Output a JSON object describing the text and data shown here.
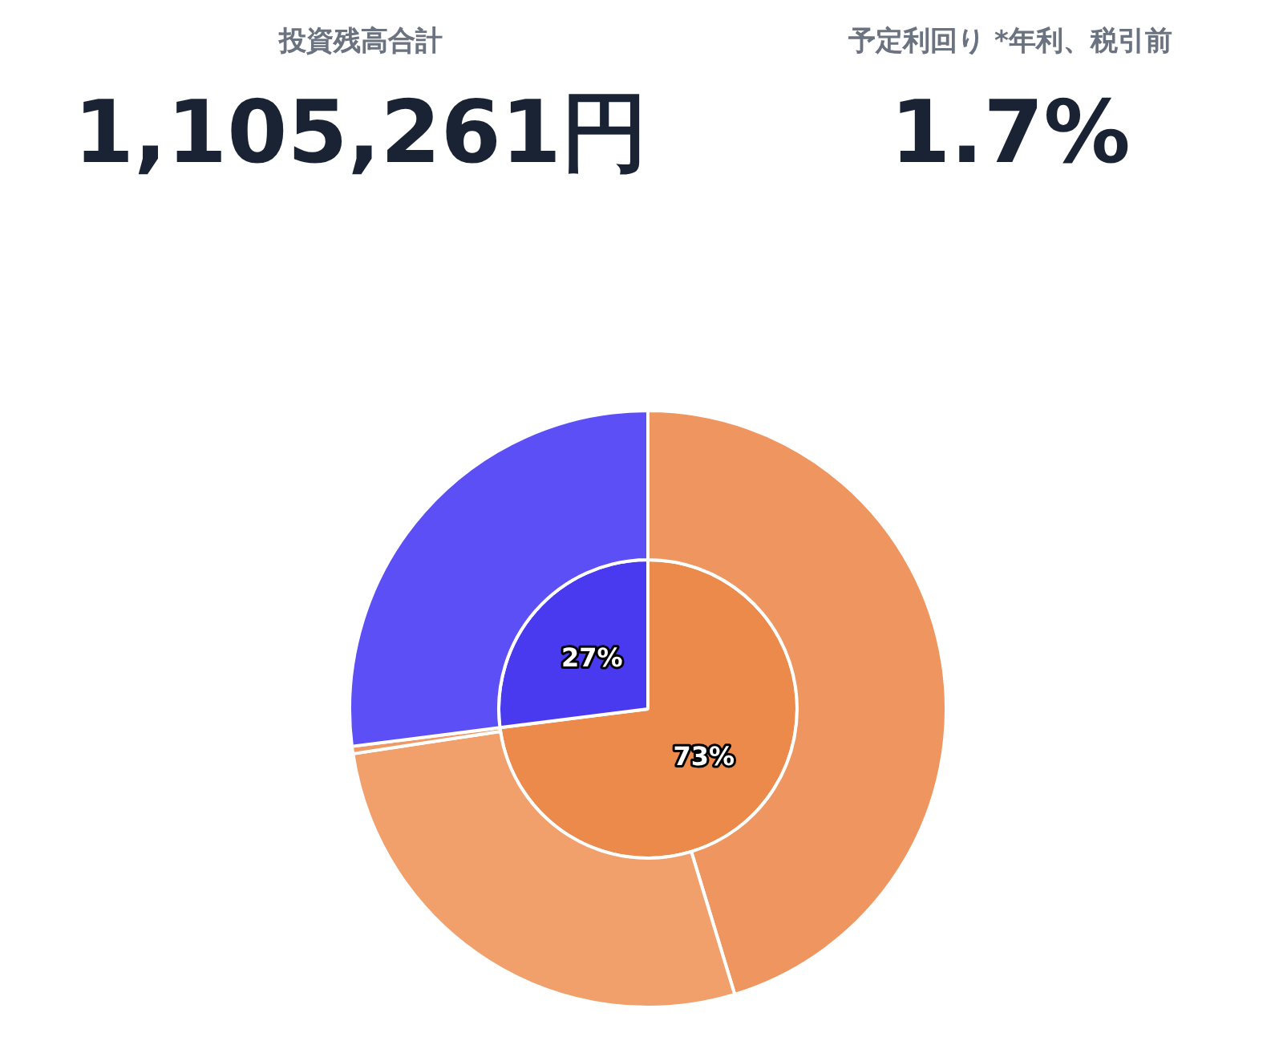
{
  "chart_data": [
    {
      "type": "other",
      "annotations": [
        "投資残高合計",
        "1,105,261円",
        "予定利回り *年利、税引前",
        "1.7%"
      ]
    },
    {
      "type": "pie",
      "legend": false,
      "series": [
        {
          "colors": [
            "#ec8a4c",
            "#4a3aef"
          ],
          "values": [
            73,
            27
          ],
          "value_labels": [
            "73%",
            "27%"
          ]
        },
        {
          "colors": [
            "#ef9660",
            "#f1a06c",
            "#ef9a66",
            "#5b4ff5"
          ],
          "values": [
            45.3,
            27.3,
            0.4,
            27
          ]
        }
      ]
    }
  ]
}
